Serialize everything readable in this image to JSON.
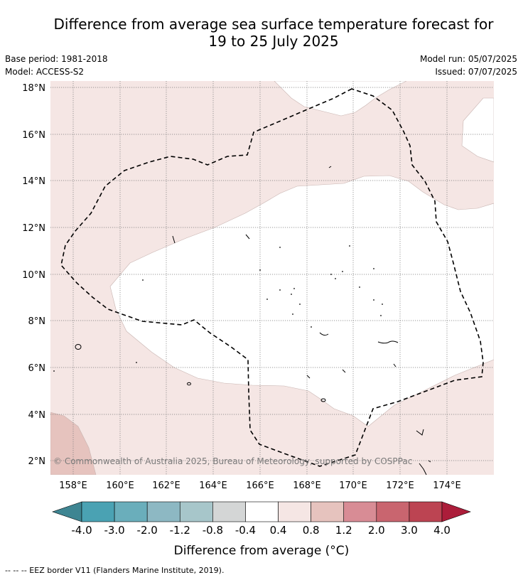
{
  "header": {
    "title_line1": "Difference from average sea surface temperature forecast for",
    "title_line2": "19 to 25 July 2025",
    "base_period": "Base period: 1981-2018",
    "model": "Model: ACCESS-S2",
    "model_run": "Model run: 05/07/2025",
    "issued": "Issued: 07/07/2025"
  },
  "map": {
    "lon_range": [
      157.0,
      175.9
    ],
    "lat_range": [
      1.4,
      18.3
    ],
    "lat_ticks": [
      "2°N",
      "4°N",
      "6°N",
      "8°N",
      "10°N",
      "12°N",
      "14°N",
      "16°N",
      "18°N"
    ],
    "lon_ticks": [
      "158°E",
      "160°E",
      "162°E",
      "164°E",
      "166°E",
      "168°E",
      "170°E",
      "172°E",
      "174°E"
    ],
    "grid": true,
    "copyright": "© Commonwealth of Australia 2025, Bureau of Meteorology, supported by COSPPac",
    "eez_border": "dashed black",
    "colors": {
      "anomaly_0_4_to_0_8": "#f5e6e4",
      "anomaly_0_8_to_1_2": "#e6c3be",
      "neutral": "#ffffff"
    }
  },
  "colorbar": {
    "tick_labels": [
      "-4.0",
      "-3.0",
      "-2.0",
      "-1.2",
      "-0.8",
      "-0.4",
      "0.4",
      "0.8",
      "1.2",
      "2.0",
      "3.0",
      "4.0"
    ],
    "colors": [
      "#3e8592",
      "#4aa2b3",
      "#6aaebb",
      "#8db8c3",
      "#a7c6ca",
      "#d4d6d6",
      "#ffffff",
      "#f5e6e4",
      "#e6c3be",
      "#d88c95",
      "#c9656f",
      "#bc4452",
      "#ac1d3a"
    ],
    "label": "Difference from average (°C)"
  },
  "footer": "-- -- -- EEZ border V11 (Flanders Marine Institute, 2019)."
}
